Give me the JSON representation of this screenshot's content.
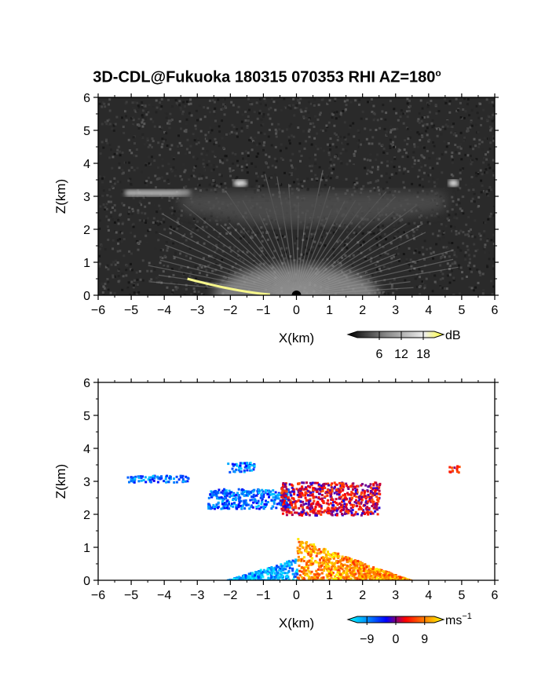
{
  "title": {
    "main": "3D-CDL@Fukuoka 180315 070353 RHI AZ=180",
    "degree_mark": "o"
  },
  "chart_data": [
    {
      "type": "heatmap",
      "id": "reflectivity-panel",
      "xlabel": "X(km)",
      "ylabel": "Z(km)",
      "xlim": [
        -6,
        6
      ],
      "ylim": [
        0,
        6
      ],
      "x_ticks": [
        -6,
        -5,
        -4,
        -3,
        -2,
        -1,
        0,
        1,
        2,
        3,
        4,
        5,
        6
      ],
      "y_ticks": [
        0,
        1,
        2,
        3,
        4,
        5,
        6
      ],
      "background_color": "#2a2a2a",
      "colorbar": {
        "unit": "dB",
        "ticks": [
          6,
          12,
          18
        ],
        "range": [
          0,
          21
        ],
        "colors": [
          "#000000",
          "#444444",
          "#888888",
          "#bbbbbb",
          "#eeeeee",
          "#ffff33"
        ]
      },
      "features": [
        {
          "name": "upper cloud layer",
          "x_range": [
            -5.2,
            -3.2
          ],
          "z_range": [
            3.0,
            3.2
          ],
          "level_db": 12
        },
        {
          "name": "diffuse layer",
          "x_range": [
            -3.5,
            4.5
          ],
          "z_range": [
            2.0,
            3.3
          ],
          "level_db": 5
        },
        {
          "name": "near-ground fan",
          "x_range": [
            -2.5,
            2.5
          ],
          "z_range": [
            0.0,
            0.9
          ],
          "level_db": 10
        },
        {
          "name": "small cloud",
          "x_range": [
            -1.9,
            -1.5
          ],
          "z_range": [
            3.3,
            3.5
          ],
          "level_db": 16
        },
        {
          "name": "small cloud",
          "x_range": [
            4.6,
            4.9
          ],
          "z_range": [
            3.3,
            3.5
          ],
          "level_db": 16
        },
        {
          "name": "surface return",
          "x_range": [
            -3.3,
            -0.8
          ],
          "z_range": [
            0.0,
            0.5
          ],
          "level_db": 19
        }
      ]
    },
    {
      "type": "heatmap",
      "id": "velocity-panel",
      "xlabel": "X(km)",
      "ylabel": "Z(km)",
      "xlim": [
        -6,
        6
      ],
      "ylim": [
        0,
        6
      ],
      "x_ticks": [
        -6,
        -5,
        -4,
        -3,
        -2,
        -1,
        0,
        1,
        2,
        3,
        4,
        5,
        6
      ],
      "y_ticks": [
        0,
        1,
        2,
        3,
        4,
        5,
        6
      ],
      "background_color": "#ffffff",
      "colorbar": {
        "unit": "ms",
        "unit_exponent": "−1",
        "ticks": [
          "−9",
          "0",
          "9"
        ],
        "tick_values": [
          -9,
          0,
          9
        ],
        "range": [
          -12,
          12
        ],
        "colors": [
          "#00ffff",
          "#0090ff",
          "#0000ff",
          "#ff0000",
          "#ff7f00",
          "#ffff00"
        ]
      },
      "features": [
        {
          "name": "upper cloud layer",
          "x_range": [
            -5.2,
            -3.2
          ],
          "z_range": [
            3.0,
            3.2
          ],
          "velocity": -6
        },
        {
          "name": "small cloud",
          "x_range": [
            -2.1,
            -1.3
          ],
          "z_range": [
            3.3,
            3.6
          ],
          "velocity": -6
        },
        {
          "name": "mid layer negative",
          "x_range": [
            -2.7,
            -0.2
          ],
          "z_range": [
            2.2,
            2.8
          ],
          "velocity": -6
        },
        {
          "name": "mid layer mixed",
          "x_range": [
            -0.5,
            2.5
          ],
          "z_range": [
            2.0,
            3.0
          ],
          "velocity": 2
        },
        {
          "name": "small cloud",
          "x_range": [
            4.6,
            4.9
          ],
          "z_range": [
            3.3,
            3.5
          ],
          "velocity": 3
        },
        {
          "name": "near-ground negative",
          "x_range": [
            -2.2,
            0.0
          ],
          "z_range": [
            0.0,
            0.7
          ],
          "velocity": -8
        },
        {
          "name": "near-ground positive",
          "x_range": [
            0.0,
            3.5
          ],
          "z_range": [
            0.0,
            1.3
          ],
          "velocity": 8
        }
      ]
    }
  ]
}
